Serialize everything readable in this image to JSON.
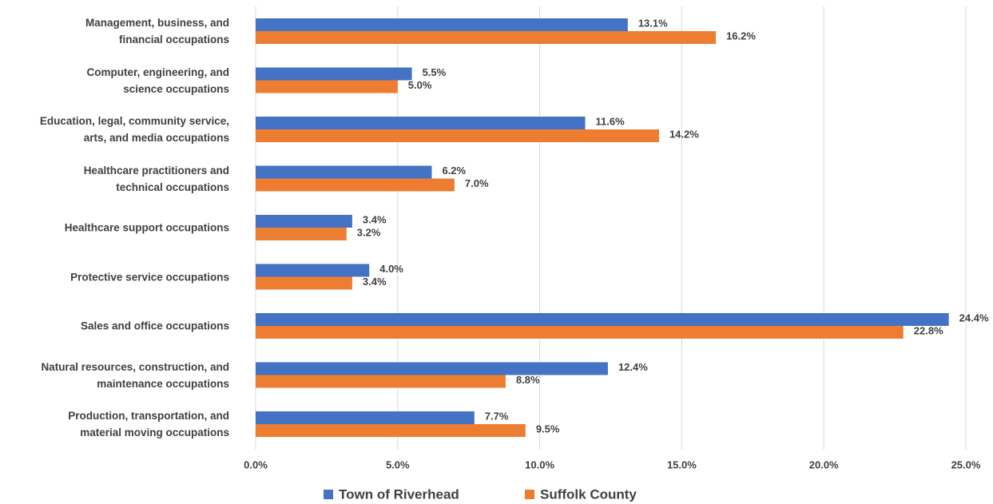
{
  "chart_data": {
    "type": "bar",
    "orientation": "horizontal",
    "categories": [
      "Management, business, and\nfinancial occupations",
      "Computer, engineering, and\nscience occupations",
      "Education, legal, community service,\narts, and media occupations",
      "Healthcare practitioners and\ntechnical occupations",
      "Healthcare support occupations",
      "Protective service occupations",
      "Sales and office occupations",
      "Natural resources, construction, and\nmaintenance occupations",
      "Production, transportation, and\nmaterial moving occupations"
    ],
    "series": [
      {
        "name": "Town of Riverhead",
        "color": "#4472c4",
        "values": [
          13.1,
          5.5,
          11.6,
          6.2,
          3.4,
          4.0,
          24.4,
          12.4,
          7.7
        ],
        "value_labels": [
          "13.1%",
          "5.5%",
          "11.6%",
          "6.2%",
          "3.4%",
          "4.0%",
          "24.4%",
          "12.4%",
          "7.7%"
        ]
      },
      {
        "name": "Suffolk County",
        "color": "#ed7d31",
        "values": [
          16.2,
          5.0,
          14.2,
          7.0,
          3.2,
          3.4,
          22.8,
          8.8,
          9.5
        ],
        "value_labels": [
          "16.2%",
          "5.0%",
          "14.2%",
          "7.0%",
          "3.2%",
          "3.4%",
          "22.8%",
          "8.8%",
          "9.5%"
        ]
      }
    ],
    "xlim": [
      0,
      25
    ],
    "xticks": [
      {
        "value": 0,
        "label": "0.0%"
      },
      {
        "value": 5,
        "label": "5.0%"
      },
      {
        "value": 10,
        "label": "10.0%"
      },
      {
        "value": 15,
        "label": "15.0%"
      },
      {
        "value": 20,
        "label": "20.0%"
      },
      {
        "value": 25,
        "label": "25.0%"
      }
    ],
    "grid": true,
    "legend": "bottom"
  }
}
